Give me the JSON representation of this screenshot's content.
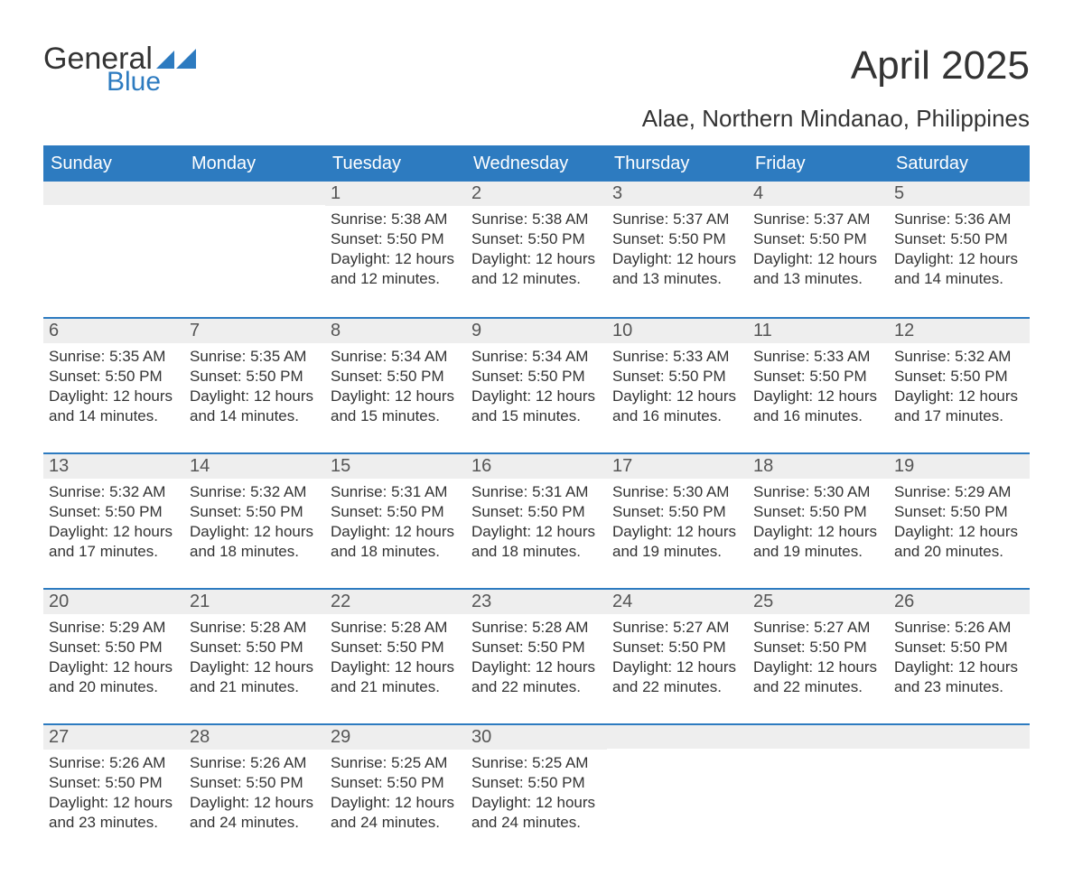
{
  "logo": {
    "word1": "General",
    "word2": "Blue"
  },
  "title": "April 2025",
  "location": "Alae, Northern Mindanao, Philippines",
  "colors": {
    "accent": "#2d7bc0",
    "header_text": "#ffffff",
    "daynum_bg": "#eeeeee",
    "daynum_text": "#555555",
    "body_text": "#333333",
    "page_bg": "#ffffff"
  },
  "day_headers": [
    "Sunday",
    "Monday",
    "Tuesday",
    "Wednesday",
    "Thursday",
    "Friday",
    "Saturday"
  ],
  "weeks": [
    [
      {
        "blank": true
      },
      {
        "blank": true
      },
      {
        "n": "1",
        "sunrise": "5:38 AM",
        "sunset": "5:50 PM",
        "daylight": "12 hours and 12 minutes."
      },
      {
        "n": "2",
        "sunrise": "5:38 AM",
        "sunset": "5:50 PM",
        "daylight": "12 hours and 12 minutes."
      },
      {
        "n": "3",
        "sunrise": "5:37 AM",
        "sunset": "5:50 PM",
        "daylight": "12 hours and 13 minutes."
      },
      {
        "n": "4",
        "sunrise": "5:37 AM",
        "sunset": "5:50 PM",
        "daylight": "12 hours and 13 minutes."
      },
      {
        "n": "5",
        "sunrise": "5:36 AM",
        "sunset": "5:50 PM",
        "daylight": "12 hours and 14 minutes."
      }
    ],
    [
      {
        "n": "6",
        "sunrise": "5:35 AM",
        "sunset": "5:50 PM",
        "daylight": "12 hours and 14 minutes."
      },
      {
        "n": "7",
        "sunrise": "5:35 AM",
        "sunset": "5:50 PM",
        "daylight": "12 hours and 14 minutes."
      },
      {
        "n": "8",
        "sunrise": "5:34 AM",
        "sunset": "5:50 PM",
        "daylight": "12 hours and 15 minutes."
      },
      {
        "n": "9",
        "sunrise": "5:34 AM",
        "sunset": "5:50 PM",
        "daylight": "12 hours and 15 minutes."
      },
      {
        "n": "10",
        "sunrise": "5:33 AM",
        "sunset": "5:50 PM",
        "daylight": "12 hours and 16 minutes."
      },
      {
        "n": "11",
        "sunrise": "5:33 AM",
        "sunset": "5:50 PM",
        "daylight": "12 hours and 16 minutes."
      },
      {
        "n": "12",
        "sunrise": "5:32 AM",
        "sunset": "5:50 PM",
        "daylight": "12 hours and 17 minutes."
      }
    ],
    [
      {
        "n": "13",
        "sunrise": "5:32 AM",
        "sunset": "5:50 PM",
        "daylight": "12 hours and 17 minutes."
      },
      {
        "n": "14",
        "sunrise": "5:32 AM",
        "sunset": "5:50 PM",
        "daylight": "12 hours and 18 minutes."
      },
      {
        "n": "15",
        "sunrise": "5:31 AM",
        "sunset": "5:50 PM",
        "daylight": "12 hours and 18 minutes."
      },
      {
        "n": "16",
        "sunrise": "5:31 AM",
        "sunset": "5:50 PM",
        "daylight": "12 hours and 18 minutes."
      },
      {
        "n": "17",
        "sunrise": "5:30 AM",
        "sunset": "5:50 PM",
        "daylight": "12 hours and 19 minutes."
      },
      {
        "n": "18",
        "sunrise": "5:30 AM",
        "sunset": "5:50 PM",
        "daylight": "12 hours and 19 minutes."
      },
      {
        "n": "19",
        "sunrise": "5:29 AM",
        "sunset": "5:50 PM",
        "daylight": "12 hours and 20 minutes."
      }
    ],
    [
      {
        "n": "20",
        "sunrise": "5:29 AM",
        "sunset": "5:50 PM",
        "daylight": "12 hours and 20 minutes."
      },
      {
        "n": "21",
        "sunrise": "5:28 AM",
        "sunset": "5:50 PM",
        "daylight": "12 hours and 21 minutes."
      },
      {
        "n": "22",
        "sunrise": "5:28 AM",
        "sunset": "5:50 PM",
        "daylight": "12 hours and 21 minutes."
      },
      {
        "n": "23",
        "sunrise": "5:28 AM",
        "sunset": "5:50 PM",
        "daylight": "12 hours and 22 minutes."
      },
      {
        "n": "24",
        "sunrise": "5:27 AM",
        "sunset": "5:50 PM",
        "daylight": "12 hours and 22 minutes."
      },
      {
        "n": "25",
        "sunrise": "5:27 AM",
        "sunset": "5:50 PM",
        "daylight": "12 hours and 22 minutes."
      },
      {
        "n": "26",
        "sunrise": "5:26 AM",
        "sunset": "5:50 PM",
        "daylight": "12 hours and 23 minutes."
      }
    ],
    [
      {
        "n": "27",
        "sunrise": "5:26 AM",
        "sunset": "5:50 PM",
        "daylight": "12 hours and 23 minutes."
      },
      {
        "n": "28",
        "sunrise": "5:26 AM",
        "sunset": "5:50 PM",
        "daylight": "12 hours and 24 minutes."
      },
      {
        "n": "29",
        "sunrise": "5:25 AM",
        "sunset": "5:50 PM",
        "daylight": "12 hours and 24 minutes."
      },
      {
        "n": "30",
        "sunrise": "5:25 AM",
        "sunset": "5:50 PM",
        "daylight": "12 hours and 24 minutes."
      },
      {
        "blank": true
      },
      {
        "blank": true
      },
      {
        "blank": true
      }
    ]
  ],
  "labels": {
    "sunrise_prefix": "Sunrise: ",
    "sunset_prefix": "Sunset: ",
    "daylight_prefix": "Daylight: "
  }
}
